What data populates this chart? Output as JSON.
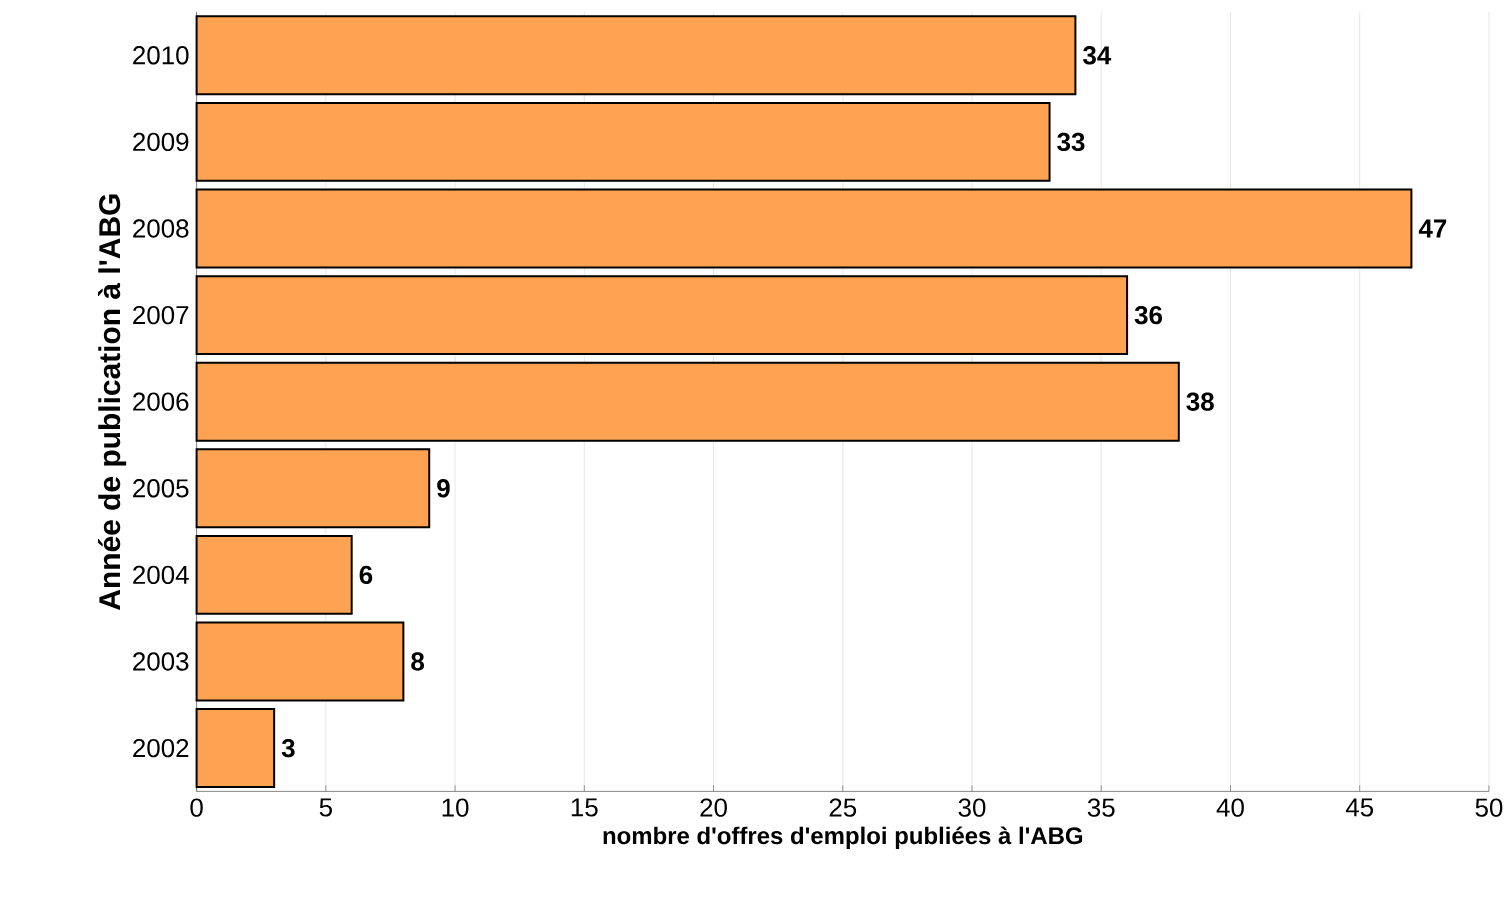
{
  "chart_data": {
    "type": "bar",
    "orientation": "horizontal",
    "xlabel": "nombre d'offres d'emploi publiées à l'ABG",
    "ylabel": "Année de publication à l'ABG",
    "categories": [
      "2010",
      "2009",
      "2008",
      "2007",
      "2006",
      "2005",
      "2004",
      "2003",
      "2002"
    ],
    "values": [
      34,
      33,
      47,
      36,
      38,
      9,
      6,
      8,
      3
    ],
    "color": "#ffa352",
    "xlim": [
      0,
      50
    ],
    "xticks": [
      0,
      5,
      10,
      15,
      20,
      25,
      30,
      35,
      40,
      45,
      50
    ],
    "grid": "x",
    "data_labels": true
  }
}
